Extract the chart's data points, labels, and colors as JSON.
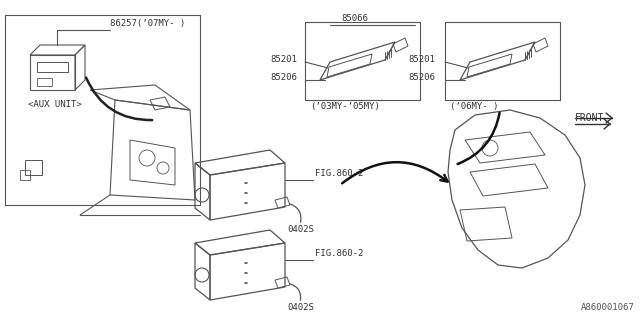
{
  "bg_color": "#FFFFFF",
  "line_color": "#555555",
  "text_color": "#333333",
  "part_number_bottom_right": "A860001067",
  "labels": {
    "aux_unit_part": "86257(’07MY- )",
    "aux_unit_label": "<AUX UNIT>",
    "p85066": "85066",
    "p85201_left": "85201",
    "p85206_left": "85206",
    "p85201_right": "85201",
    "p85206_right": "85206",
    "year_left": "(’03MY-’05MY)",
    "year_right": "(’06MY- )",
    "fig860_top": "FIG.860-2",
    "fig860_bot": "FIG.860-2",
    "screw_top": "0402S",
    "screw_bot": "0402S",
    "front_arrow": "FRONT"
  }
}
